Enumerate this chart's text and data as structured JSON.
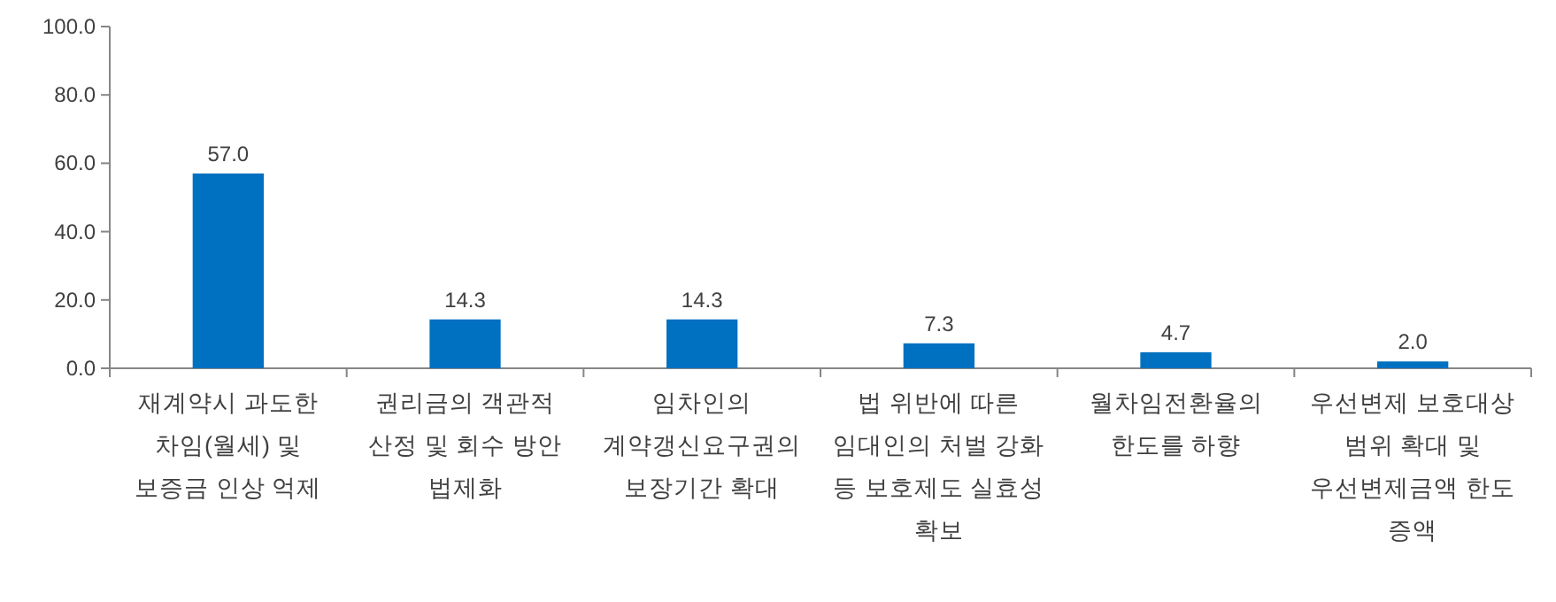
{
  "chart_data": {
    "type": "bar",
    "categories": [
      "재계약시 과도한 차임(월세) 및 보증금 인상 억제",
      "권리금의 객관적 산정 및 회수 방안 법제화",
      "임차인의 계약갱신요구권의 보장기간 확대",
      "법 위반에 따른 임대인의 처벌 강화 등 보호제도 실효성 확보",
      "월차임전환율의 한도를 하향",
      "우선변제 보호대상 범위 확대 및 우선변제금액 한도 증액"
    ],
    "values": [
      57.0,
      14.3,
      14.3,
      7.3,
      4.7,
      2.0
    ],
    "value_labels": [
      "57.0",
      "14.3",
      "14.3",
      "7.3",
      "4.7",
      "2.0"
    ],
    "color": "#0070c0",
    "ylim": [
      0,
      100
    ],
    "yticks": [
      {
        "value": 0,
        "label": "0.0"
      },
      {
        "value": 20,
        "label": "20.0"
      },
      {
        "value": 40,
        "label": "40.0"
      },
      {
        "value": 60,
        "label": "60.0"
      },
      {
        "value": 80,
        "label": "80.0"
      },
      {
        "value": 100,
        "label": "100.0"
      }
    ]
  }
}
